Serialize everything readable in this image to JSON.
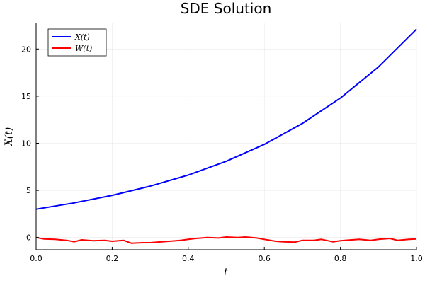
{
  "chart_data": {
    "type": "line",
    "title": "SDE Solution",
    "xlabel": "t",
    "ylabel": "X(t)",
    "xlim": [
      0,
      1
    ],
    "ylim": [
      -1.3,
      22.8
    ],
    "x_ticks": [
      0,
      0.2,
      0.4,
      0.6,
      0.8,
      1
    ],
    "x_tick_labels": [
      "0.0",
      "0.2",
      "0.4",
      "0.6",
      "0.8",
      "1.0"
    ],
    "y_ticks": [
      0,
      5,
      10,
      15,
      20
    ],
    "y_tick_labels": [
      "0",
      "5",
      "10",
      "15",
      "20"
    ],
    "grid": true,
    "legend_position": "top-left",
    "series": [
      {
        "name": "X(t)",
        "color": "#0000ff",
        "x": [
          0,
          0.1,
          0.2,
          0.3,
          0.4,
          0.5,
          0.6,
          0.7,
          0.8,
          0.9,
          1.0
        ],
        "values": [
          3.0,
          3.67,
          4.47,
          5.45,
          6.63,
          8.09,
          9.88,
          12.1,
          14.8,
          18.1,
          22.1
        ]
      },
      {
        "name": "W(t)",
        "color": "#ff0000",
        "x": [
          0,
          0.02,
          0.05,
          0.08,
          0.1,
          0.12,
          0.15,
          0.18,
          0.2,
          0.23,
          0.25,
          0.28,
          0.3,
          0.33,
          0.35,
          0.38,
          0.4,
          0.42,
          0.45,
          0.48,
          0.5,
          0.53,
          0.55,
          0.58,
          0.6,
          0.63,
          0.65,
          0.68,
          0.7,
          0.73,
          0.75,
          0.78,
          0.8,
          0.83,
          0.85,
          0.88,
          0.9,
          0.93,
          0.95,
          0.98,
          1.0
        ],
        "values": [
          0.0,
          -0.15,
          -0.2,
          -0.3,
          -0.45,
          -0.25,
          -0.35,
          -0.3,
          -0.4,
          -0.3,
          -0.6,
          -0.55,
          -0.55,
          -0.45,
          -0.4,
          -0.3,
          -0.2,
          -0.1,
          0.0,
          -0.05,
          0.05,
          0.0,
          0.05,
          -0.05,
          -0.2,
          -0.4,
          -0.45,
          -0.5,
          -0.3,
          -0.3,
          -0.2,
          -0.45,
          -0.35,
          -0.25,
          -0.2,
          -0.3,
          -0.2,
          -0.1,
          -0.3,
          -0.2,
          -0.15
        ]
      }
    ]
  }
}
